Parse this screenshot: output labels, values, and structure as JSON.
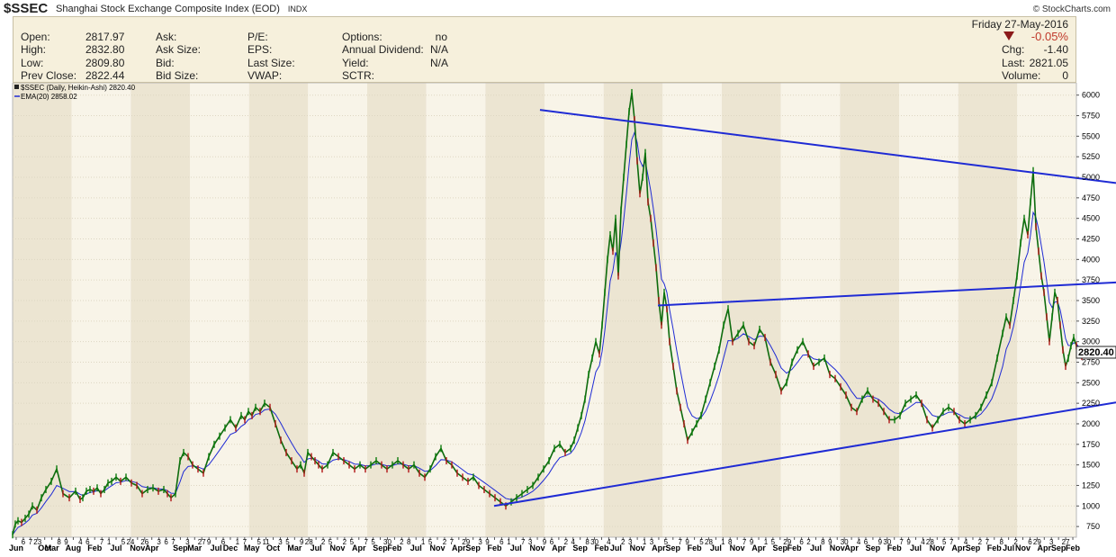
{
  "header": {
    "symbol": "$SSEC",
    "title": "Shanghai Stock Exchange Composite Index (EOD)",
    "exchange": "INDX",
    "watermark": "© StockCharts.com"
  },
  "quote": {
    "col1": [
      {
        "label": "Open:",
        "value": "2817.97"
      },
      {
        "label": "High:",
        "value": "2832.80"
      },
      {
        "label": "Low:",
        "value": "2809.80"
      },
      {
        "label": "Prev Close:",
        "value": "2822.44"
      }
    ],
    "col2": [
      "Ask:",
      "Ask Size:",
      "Bid:",
      "Bid Size:"
    ],
    "col3": [
      "P/E:",
      "EPS:",
      "Last Size:",
      "VWAP:"
    ],
    "col4": [
      {
        "label": "Options:",
        "value": "no"
      },
      {
        "label": "Annual Dividend:",
        "value": "N/A"
      },
      {
        "label": "Yield:",
        "value": "N/A"
      },
      {
        "label": "SCTR:",
        "value": ""
      }
    ],
    "date": "Friday  27-May-2016",
    "change_pct": "-0.05%",
    "chg": {
      "label": "Chg:",
      "value": "-1.40"
    },
    "last": {
      "label": "Last:",
      "value": "2821.05"
    },
    "volume": {
      "label": "Volume:",
      "value": "0"
    },
    "down_color": "#8b1a1a"
  },
  "chart_data": {
    "type": "line",
    "legend_title": "$SSEC (Daily, Heikin-Ashi) 2820.40",
    "legend_ema": "EMA(20) 2858.02",
    "price_tag": "2820.40",
    "ylim": [
      620,
      6150
    ],
    "y_ticks": [
      750,
      1000,
      1250,
      1500,
      1750,
      2000,
      2250,
      2500,
      2750,
      3000,
      3250,
      3500,
      3750,
      4000,
      4250,
      4500,
      4750,
      5000,
      5250,
      5500,
      5750,
      6000
    ],
    "x_labels": [
      "Jun",
      "6",
      "7",
      "23",
      "Oct",
      "Mar",
      "8",
      "9",
      "Aug",
      "4",
      "6",
      "Feb",
      "7",
      "1",
      "Jul",
      "5",
      "24",
      "Nov",
      "26",
      "Apr",
      "3",
      "6",
      "7",
      "Sep",
      "3",
      "Mar",
      "27",
      "9",
      "Jul",
      "6",
      "Dec",
      "1",
      "7",
      "May",
      "5",
      "11",
      "Oct",
      "3",
      "5",
      "Mar",
      "9",
      "28",
      "Jul",
      "2",
      "5",
      "Nov",
      "2",
      "5",
      "Apr",
      "7",
      "5",
      "Sep",
      "30",
      "Feb",
      "2",
      "8",
      "Jul",
      "1",
      "5",
      "Nov",
      "2",
      "7",
      "Apr",
      "29",
      "Sep",
      "3",
      "9",
      "Feb",
      "6",
      "1",
      "Jul",
      "7",
      "3",
      "Nov",
      "9",
      "6",
      "Apr",
      "2",
      "4",
      "Sep",
      "8",
      "30",
      "Feb",
      "4",
      "Jul",
      "2",
      "3",
      "Nov",
      "1",
      "3",
      "Apr",
      "5",
      "Sep",
      "7",
      "9",
      "Feb",
      "5",
      "28",
      "Jul",
      "1",
      "8",
      "Nov",
      "7",
      "9",
      "Apr",
      "1",
      "5",
      "Sep",
      "29",
      "Feb",
      "6",
      "2",
      "Jul",
      "8",
      "9",
      "Nov",
      "30",
      "Apr",
      "4",
      "6",
      "Sep",
      "9",
      "30",
      "Feb",
      "7",
      "9",
      "Jul",
      "4",
      "28",
      "Nov",
      "5",
      "7",
      "Apr",
      "4",
      "Sep",
      "2",
      "7",
      "Feb",
      "8",
      "Jul",
      "2",
      "Nov",
      "6",
      "29",
      "Apr",
      "3",
      "Sep",
      "27",
      "Feb"
    ],
    "series": [
      {
        "x": [
          0,
          3,
          6,
          10,
          14,
          18,
          22,
          27,
          32,
          37,
          43,
          49,
          56,
          63,
          70,
          75,
          78,
          82,
          86,
          90,
          94,
          98,
          102,
          106,
          110,
          115,
          120,
          126,
          132,
          138,
          144,
          150,
          156,
          162,
          168,
          172,
          176,
          181,
          186,
          190,
          195,
          200,
          206,
          212,
          218,
          224,
          230,
          236,
          242,
          248,
          254,
          258,
          262,
          266,
          270,
          275,
          280,
          286,
          292,
          298,
          304,
          310,
          316,
          320,
          324,
          328,
          332,
          336,
          340,
          344,
          350,
          356,
          362,
          368,
          374,
          380,
          386,
          392,
          398,
          404,
          410,
          416,
          422,
          428,
          434,
          440,
          446,
          452,
          458,
          464,
          470,
          476,
          482,
          488,
          494,
          500,
          506,
          512,
          518,
          524,
          530,
          536,
          542,
          548,
          554,
          560,
          566,
          572,
          578,
          584,
          590,
          596,
          602,
          608,
          614,
          620,
          624,
          628,
          632,
          636,
          640,
          644,
          648,
          652,
          655,
          658,
          661,
          664,
          667,
          670,
          673,
          676,
          679,
          682,
          685,
          688,
          691,
          694,
          697,
          700,
          703,
          706,
          709,
          712,
          715,
          718,
          721,
          724,
          727,
          730,
          734,
          738,
          742,
          746,
          750,
          755,
          760,
          765,
          770,
          775,
          780,
          785,
          790,
          795,
          800,
          806,
          812,
          818,
          824,
          830,
          836,
          842,
          848,
          854,
          860,
          866,
          872,
          878,
          884,
          890,
          896,
          902,
          908,
          914,
          920,
          926,
          932,
          938,
          944,
          950,
          956,
          962,
          968,
          974,
          980,
          986,
          992,
          998,
          1004,
          1010,
          1016,
          1022,
          1028,
          1034,
          1040,
          1046,
          1052,
          1058,
          1064,
          1070,
          1076,
          1082,
          1088,
          1094,
          1100,
          1104,
          1108,
          1112,
          1116,
          1120,
          1124,
          1128,
          1131,
          1134,
          1137,
          1140,
          1143,
          1146,
          1149,
          1152,
          1155,
          1158,
          1161,
          1164,
          1167,
          1170,
          1173,
          1176,
          1179,
          1182,
          1185,
          1188
        ],
        "values": [
          650,
          780,
          820,
          800,
          850,
          900,
          1000,
          950,
          1100,
          1200,
          1300,
          1450,
          1150,
          1100,
          1180,
          1080,
          1100,
          1180,
          1200,
          1180,
          1220,
          1150,
          1200,
          1280,
          1300,
          1350,
          1300,
          1350,
          1280,
          1250,
          1150,
          1200,
          1220,
          1180,
          1200,
          1150,
          1100,
          1150,
          1550,
          1650,
          1600,
          1500,
          1450,
          1400,
          1600,
          1750,
          1850,
          1950,
          2050,
          1950,
          2100,
          2050,
          2150,
          2100,
          2200,
          2150,
          2250,
          2200,
          2000,
          1800,
          1650,
          1550,
          1450,
          1500,
          1400,
          1650,
          1600,
          1550,
          1500,
          1450,
          1500,
          1650,
          1600,
          1550,
          1500,
          1450,
          1500,
          1450,
          1500,
          1550,
          1500,
          1450,
          1500,
          1550,
          1500,
          1450,
          1500,
          1400,
          1350,
          1450,
          1600,
          1700,
          1550,
          1500,
          1400,
          1350,
          1300,
          1350,
          1250,
          1200,
          1150,
          1100,
          1050,
          1000,
          1050,
          1100,
          1150,
          1200,
          1250,
          1350,
          1450,
          1550,
          1700,
          1750,
          1650,
          1700,
          1800,
          1950,
          2100,
          2300,
          2600,
          2800,
          3000,
          2850,
          3200,
          3600,
          4000,
          4300,
          4100,
          4500,
          3800,
          4600,
          5000,
          5400,
          5800,
          6030,
          5700,
          5200,
          4800,
          5000,
          5300,
          4700,
          4500,
          4200,
          3900,
          3500,
          3200,
          3600,
          3400,
          3000,
          2700,
          2400,
          2200,
          2000,
          1800,
          1900,
          2000,
          2100,
          2300,
          2500,
          2700,
          2900,
          3200,
          3400,
          3000,
          3100,
          3200,
          3000,
          2950,
          3150,
          3050,
          2750,
          2600,
          2400,
          2500,
          2750,
          2900,
          3000,
          2850,
          2700,
          2750,
          2800,
          2600,
          2550,
          2450,
          2350,
          2200,
          2150,
          2300,
          2400,
          2300,
          2250,
          2150,
          2050,
          2050,
          2100,
          2250,
          2300,
          2350,
          2250,
          2050,
          1950,
          2050,
          2150,
          2200,
          2150,
          2050,
          2000,
          2050,
          2100,
          2200,
          2350,
          2500,
          2800,
          3100,
          3300,
          3200,
          3500,
          3800,
          4200,
          4500,
          4300,
          4700,
          5080,
          4400,
          4100,
          3800,
          3600,
          3300,
          3000,
          3300,
          3600,
          3500,
          3200,
          2900,
          2700,
          2800,
          2950,
          3050,
          2950,
          2850,
          2820
        ]
      }
    ],
    "trendlines": [
      {
        "x": [
          600,
          1240
        ],
        "values": [
          5820,
          4930
        ]
      },
      {
        "x": [
          731,
          1240
        ],
        "values": [
          3440,
          3720
        ]
      },
      {
        "x": [
          549,
          1240
        ],
        "values": [
          1000,
          2260
        ]
      }
    ]
  }
}
